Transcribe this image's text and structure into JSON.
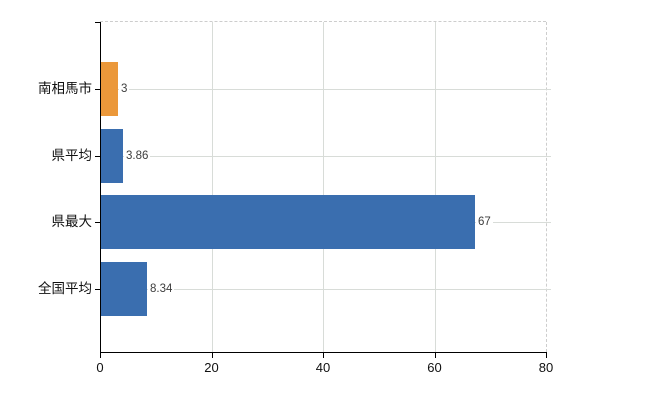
{
  "chart_data": {
    "type": "bar",
    "orientation": "horizontal",
    "title": "",
    "xlabel": "",
    "ylabel": "",
    "categories": [
      "南相馬市",
      "県平均",
      "県最大",
      "全国平均"
    ],
    "values": [
      3,
      3.86,
      67,
      8.34
    ],
    "value_labels": [
      "3",
      "3.86",
      "67",
      "8.34"
    ],
    "bar_colors": [
      "#eb983a",
      "#3a6eaf",
      "#3a6eaf",
      "#3a6eaf"
    ],
    "xlim": [
      0,
      80
    ],
    "x_ticks": [
      0,
      20,
      40,
      60,
      80
    ],
    "x_tick_labels": [
      "0",
      "20",
      "40",
      "60",
      "80"
    ],
    "grid": true,
    "legend": "none",
    "colors": {
      "bar_orange": "#eb983a",
      "bar_blue": "#3a6eaf",
      "gridline": "#d8dcd8",
      "dashed_border": "#cdcdcd",
      "axis": "#000000",
      "value_text": "#3d3d3d",
      "label_text": "#111111",
      "background": "#ffffff"
    }
  }
}
